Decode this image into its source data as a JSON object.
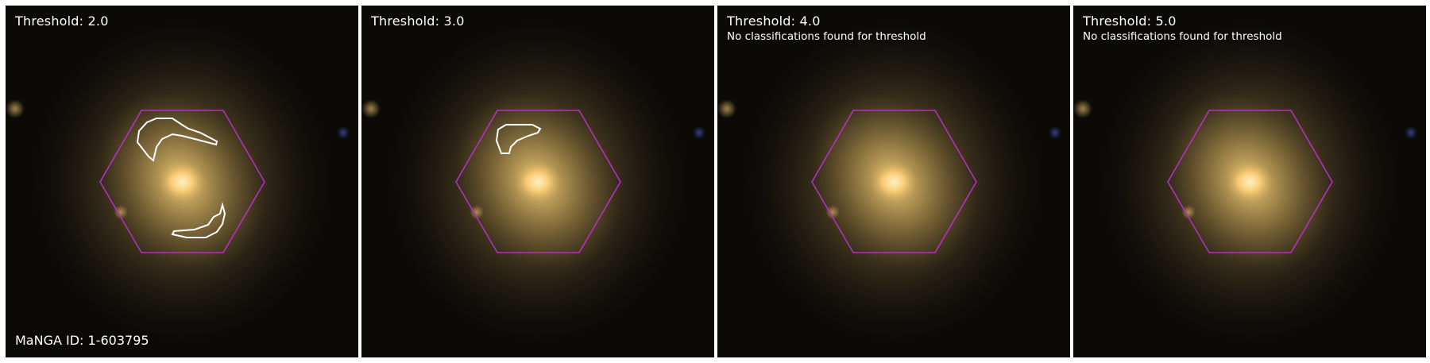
{
  "colors": {
    "background": "#ffffff",
    "hexagon": "#b72fbf",
    "contour": "#ffffff",
    "galaxy_core": "#ffd27a",
    "galaxy_halo": "#8a7340",
    "sky": "#0a0906"
  },
  "panels": [
    {
      "title": "Threshold: 2.0",
      "subtitle": "",
      "contours": 2
    },
    {
      "title": "Threshold: 3.0",
      "subtitle": "",
      "contours": 1
    },
    {
      "title": "Threshold: 4.0",
      "subtitle": "No classifications found for threshold",
      "contours": 0
    },
    {
      "title": "Threshold: 5.0",
      "subtitle": "No classifications found for threshold",
      "contours": 0
    }
  ],
  "manga_id": "MaNGA ID: 1-603795"
}
